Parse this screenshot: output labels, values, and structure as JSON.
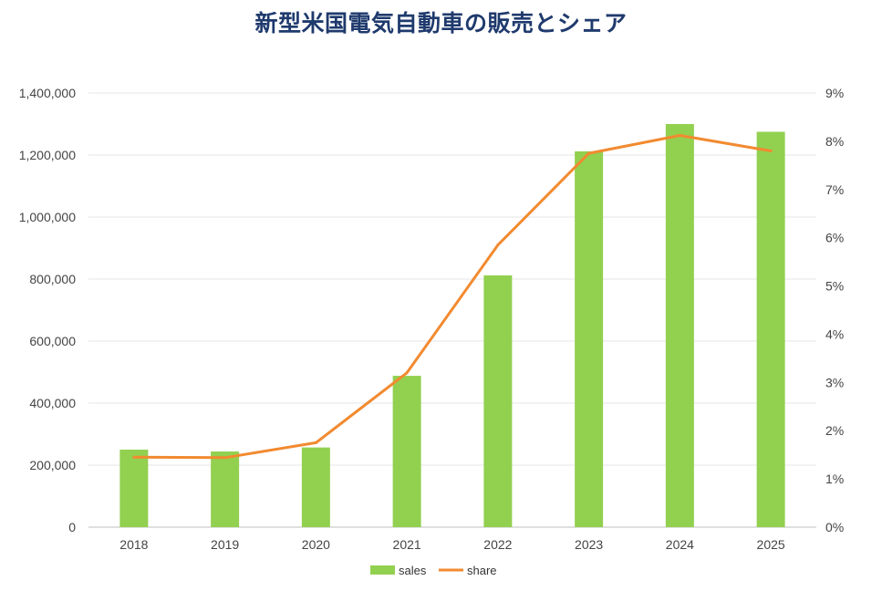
{
  "chart_data": {
    "type": "bar",
    "title": "新型米国電気自動車の販売とシェア",
    "categories": [
      "2018",
      "2019",
      "2020",
      "2021",
      "2022",
      "2023",
      "2024",
      "2025"
    ],
    "series": [
      {
        "name": "sales",
        "type": "bar",
        "axis": "left",
        "color": "#92d050",
        "values": [
          250000,
          244000,
          257000,
          488000,
          812000,
          1212000,
          1300000,
          1275000
        ]
      },
      {
        "name": "share",
        "type": "line",
        "axis": "right",
        "color": "#f28a30",
        "values": [
          1.45,
          1.44,
          1.75,
          3.2,
          5.85,
          7.75,
          8.12,
          7.8
        ]
      }
    ],
    "y_left": {
      "min": 0,
      "max": 1400000,
      "step": 200000,
      "tick_labels": [
        "0",
        "200,000",
        "400,000",
        "600,000",
        "800,000",
        "1,000,000",
        "1,200,000",
        "1,400,000"
      ]
    },
    "y_right": {
      "min": 0,
      "max": 9,
      "step": 1,
      "tick_labels": [
        "0%",
        "1%",
        "2%",
        "3%",
        "4%",
        "5%",
        "6%",
        "7%",
        "8%",
        "9%"
      ]
    },
    "grid": true,
    "legend": {
      "position": "bottom",
      "items": [
        {
          "label": "sales",
          "color": "#92d050",
          "kind": "box"
        },
        {
          "label": "share",
          "color": "#f28a30",
          "kind": "line"
        }
      ]
    }
  }
}
